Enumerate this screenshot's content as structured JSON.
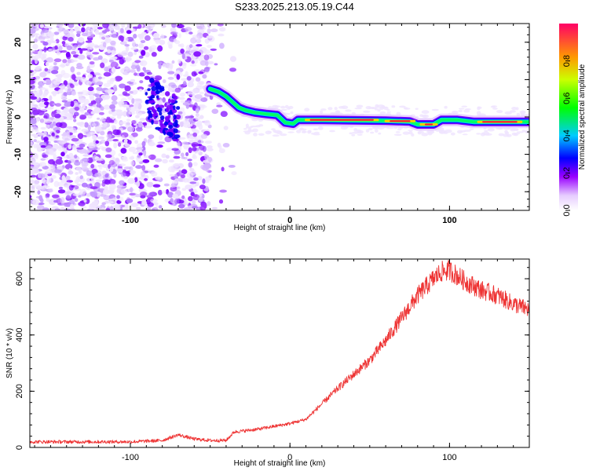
{
  "title": "S233.2025.213.05.19.C44",
  "chart_data": [
    {
      "type": "heatmap",
      "xlabel": "Height of straight line (km)",
      "ylabel": "Frequency (Hz)",
      "xlim": [
        -163,
        150
      ],
      "ylim": [
        -25,
        25
      ],
      "xticks": [
        -100,
        0,
        100
      ],
      "yticks": [
        -20,
        -10,
        0,
        10,
        20
      ],
      "colorbar": {
        "label": "Normalized spectral amplitude",
        "range": [
          0,
          1
        ],
        "ticks": [
          0.0,
          0.2,
          0.4,
          0.6,
          0.8
        ]
      },
      "ridge": [
        {
          "x": -50,
          "y": 7.5
        },
        {
          "x": -45,
          "y": 6.8
        },
        {
          "x": -40,
          "y": 5.5
        },
        {
          "x": -36,
          "y": 4.0
        },
        {
          "x": -32,
          "y": 2.5
        },
        {
          "x": -28,
          "y": 1.8
        },
        {
          "x": -22,
          "y": 1.2
        },
        {
          "x": -15,
          "y": 0.8
        },
        {
          "x": -8,
          "y": 0.5
        },
        {
          "x": -3,
          "y": -1.5
        },
        {
          "x": 2,
          "y": -1.8
        },
        {
          "x": 5,
          "y": -0.8
        },
        {
          "x": 20,
          "y": -0.8
        },
        {
          "x": 40,
          "y": -0.9
        },
        {
          "x": 60,
          "y": -1.0
        },
        {
          "x": 75,
          "y": -1.2
        },
        {
          "x": 80,
          "y": -2.0
        },
        {
          "x": 90,
          "y": -2.0
        },
        {
          "x": 95,
          "y": -0.8
        },
        {
          "x": 105,
          "y": -0.8
        },
        {
          "x": 115,
          "y": -1.3
        },
        {
          "x": 150,
          "y": -1.3
        }
      ]
    },
    {
      "type": "line",
      "xlabel": "Height of straight line (km)",
      "ylabel": "SNR (10 * v/v)",
      "xlim": [
        -163,
        150
      ],
      "ylim": [
        0,
        670
      ],
      "xticks": [
        -100,
        0,
        100
      ],
      "yticks": [
        0,
        200,
        400,
        600
      ],
      "color": "#ee3333",
      "series": [
        {
          "x": [
            -163,
            -140,
            -120,
            -100,
            -80,
            -70,
            -60,
            -50,
            -40,
            -35,
            -20,
            -10,
            0,
            10,
            20,
            30,
            40,
            50,
            60,
            70,
            80,
            90,
            95,
            100,
            110,
            120,
            130,
            140,
            150
          ],
          "y": [
            20,
            20,
            20,
            20,
            25,
            45,
            30,
            25,
            25,
            55,
            65,
            75,
            85,
            100,
            155,
            210,
            260,
            310,
            380,
            460,
            540,
            600,
            625,
            630,
            590,
            560,
            540,
            510,
            490
          ]
        }
      ]
    }
  ]
}
